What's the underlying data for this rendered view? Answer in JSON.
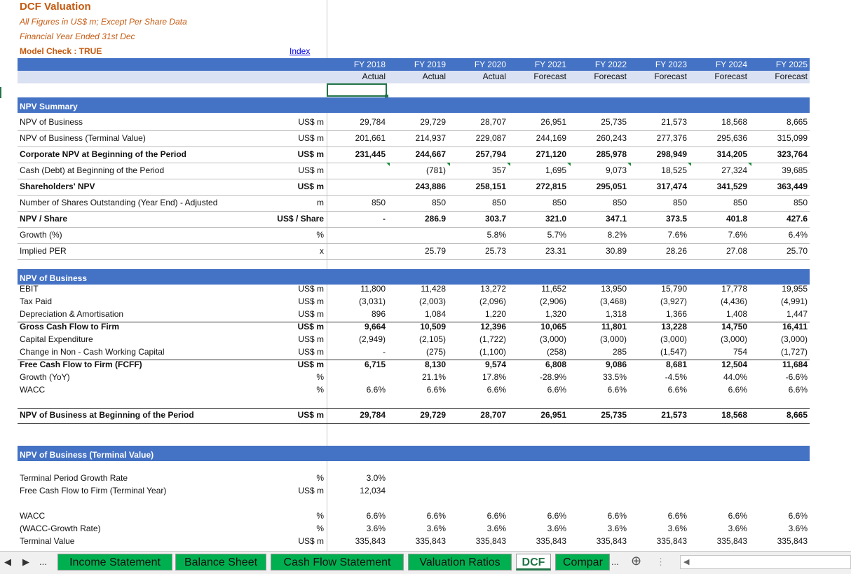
{
  "header": {
    "title": "DCF Valuation",
    "subtitle1": "All Figures in US$ m; Except Per Share Data",
    "subtitle2": "Financial Year Ended 31st Dec",
    "model_check": "Model Check : TRUE",
    "index_link": "Index"
  },
  "years": [
    "FY 2018",
    "FY 2019",
    "FY 2020",
    "FY 2021",
    "FY 2022",
    "FY 2023",
    "FY 2024",
    "FY 2025"
  ],
  "periods": [
    "Actual",
    "Actual",
    "Actual",
    "Forecast",
    "Forecast",
    "Forecast",
    "Forecast",
    "Forecast"
  ],
  "sections": {
    "npv_summary": "NPV Summary",
    "npv_business": "NPV of Business",
    "npv_terminal": "NPV of Business (Terminal Value)"
  },
  "npv_summary_rows": [
    {
      "label": "NPV of Business",
      "unit": "US$ m",
      "bold": false,
      "values": [
        "29,784",
        "29,729",
        "28,707",
        "26,951",
        "25,735",
        "21,573",
        "18,568",
        "8,665"
      ]
    },
    {
      "label": "NPV of Business (Terminal Value)",
      "unit": "US$ m",
      "bold": false,
      "values": [
        "201,661",
        "214,937",
        "229,087",
        "244,169",
        "260,243",
        "277,376",
        "295,636",
        "315,099"
      ]
    },
    {
      "label": "Corporate NPV at Beginning of the Period",
      "unit": "US$ m",
      "bold": true,
      "values": [
        "231,445",
        "244,667",
        "257,794",
        "271,120",
        "285,978",
        "298,949",
        "314,205",
        "323,764"
      ]
    },
    {
      "label": "Cash (Debt) at Beginning of the Period",
      "unit": "US$ m",
      "bold": false,
      "values": [
        "",
        "(781)",
        "357",
        "1,695",
        "9,073",
        "18,525",
        "27,324",
        "39,685"
      ]
    },
    {
      "label": "Shareholders' NPV",
      "unit": "US$ m",
      "bold": true,
      "values": [
        "",
        "243,886",
        "258,151",
        "272,815",
        "295,051",
        "317,474",
        "341,529",
        "363,449"
      ]
    },
    {
      "label": "Number of Shares Outstanding (Year End) - Adjusted",
      "unit": "m",
      "bold": false,
      "values": [
        "850",
        "850",
        "850",
        "850",
        "850",
        "850",
        "850",
        "850"
      ]
    },
    {
      "label": "NPV / Share",
      "unit": "US$ / Share",
      "bold": true,
      "values": [
        "-",
        "286.9",
        "303.7",
        "321.0",
        "347.1",
        "373.5",
        "401.8",
        "427.6"
      ]
    },
    {
      "label": "Growth (%)",
      "unit": "%",
      "bold": false,
      "values": [
        "",
        "",
        "5.8%",
        "5.7%",
        "8.2%",
        "7.6%",
        "7.6%",
        "6.4%"
      ]
    },
    {
      "label": "Implied PER",
      "unit": "x",
      "bold": false,
      "values": [
        "",
        "25.79",
        "25.73",
        "23.31",
        "30.89",
        "28.26",
        "27.08",
        "25.70"
      ]
    }
  ],
  "npv_business_rows": [
    {
      "label": "EBIT",
      "unit": "US$ m",
      "bold": false,
      "values": [
        "11,800",
        "11,428",
        "13,272",
        "11,652",
        "13,950",
        "15,790",
        "17,778",
        "19,955"
      ]
    },
    {
      "label": "Tax Paid",
      "unit": "US$ m",
      "bold": false,
      "values": [
        "(3,031)",
        "(2,003)",
        "(2,096)",
        "(2,906)",
        "(3,468)",
        "(3,927)",
        "(4,436)",
        "(4,991)"
      ]
    },
    {
      "label": "Depreciation & Amortisation",
      "unit": "US$ m",
      "bold": false,
      "values": [
        "896",
        "1,084",
        "1,220",
        "1,320",
        "1,318",
        "1,366",
        "1,408",
        "1,447"
      ]
    },
    {
      "label": "Gross Cash Flow to Firm",
      "unit": "US$ m",
      "bold": true,
      "values": [
        "9,664",
        "10,509",
        "12,396",
        "10,065",
        "11,801",
        "13,228",
        "14,750",
        "16,411"
      ]
    },
    {
      "label": "Capital Expenditure",
      "unit": "US$ m",
      "bold": false,
      "values": [
        "(2,949)",
        "(2,105)",
        "(1,722)",
        "(3,000)",
        "(3,000)",
        "(3,000)",
        "(3,000)",
        "(3,000)"
      ]
    },
    {
      "label": "Change in Non - Cash Working Capital",
      "unit": "US$ m",
      "bold": false,
      "values": [
        "-",
        "(275)",
        "(1,100)",
        "(258)",
        "285",
        "(1,547)",
        "754",
        "(1,727)"
      ]
    },
    {
      "label": "Free Cash Flow to Firm (FCFF)",
      "unit": "US$ m",
      "bold": true,
      "values": [
        "6,715",
        "8,130",
        "9,574",
        "6,808",
        "9,086",
        "8,681",
        "12,504",
        "11,684"
      ]
    },
    {
      "label": "Growth (YoY)",
      "unit": "%",
      "bold": false,
      "values": [
        "",
        "21.1%",
        "17.8%",
        "-28.9%",
        "33.5%",
        "-4.5%",
        "44.0%",
        "-6.6%"
      ]
    },
    {
      "label": "WACC",
      "unit": "%",
      "bold": false,
      "values": [
        "6.6%",
        "6.6%",
        "6.6%",
        "6.6%",
        "6.6%",
        "6.6%",
        "6.6%",
        "6.6%"
      ]
    }
  ],
  "npv_beginning_row": {
    "label": "NPV of Business at Beginning of the Period",
    "unit": "US$ m",
    "values": [
      "29,784",
      "29,729",
      "28,707",
      "26,951",
      "25,735",
      "21,573",
      "18,568",
      "8,665"
    ]
  },
  "terminal_rows": [
    {
      "label": "Terminal Period Growth Rate",
      "unit": "%",
      "values": [
        "3.0%",
        "",
        "",
        "",
        "",
        "",
        "",
        ""
      ]
    },
    {
      "label": "Free Cash Flow to Firm (Terminal Year)",
      "unit": "US$ m",
      "values": [
        "12,034",
        "",
        "",
        "",
        "",
        "",
        "",
        ""
      ]
    }
  ],
  "terminal_rows2": [
    {
      "label": "WACC",
      "unit": "%",
      "values": [
        "6.6%",
        "6.6%",
        "6.6%",
        "6.6%",
        "6.6%",
        "6.6%",
        "6.6%",
        "6.6%"
      ]
    },
    {
      "label": "(WACC-Growth Rate)",
      "unit": "%",
      "values": [
        "3.6%",
        "3.6%",
        "3.6%",
        "3.6%",
        "3.6%",
        "3.6%",
        "3.6%",
        "3.6%"
      ]
    },
    {
      "label": "Terminal Value",
      "unit": "US$ m",
      "values": [
        "335,843",
        "335,843",
        "335,843",
        "335,843",
        "335,843",
        "335,843",
        "335,843",
        "335,843"
      ]
    }
  ],
  "sheet_tabs": [
    "Income Statement",
    "Balance Sheet",
    "Cash Flow Statement",
    "Valuation Ratios",
    "DCF",
    "Compar"
  ],
  "active_tab": "DCF",
  "nav": {
    "prev": "◀",
    "next": "▶",
    "more": "...",
    "more_right": "...",
    "add": "⊕"
  },
  "colors": {
    "header_blue": "#4472c4",
    "header_light": "#d9e1f2",
    "title_orange": "#c55a11",
    "tab_green": "#00b050",
    "excel_green": "#217346"
  }
}
